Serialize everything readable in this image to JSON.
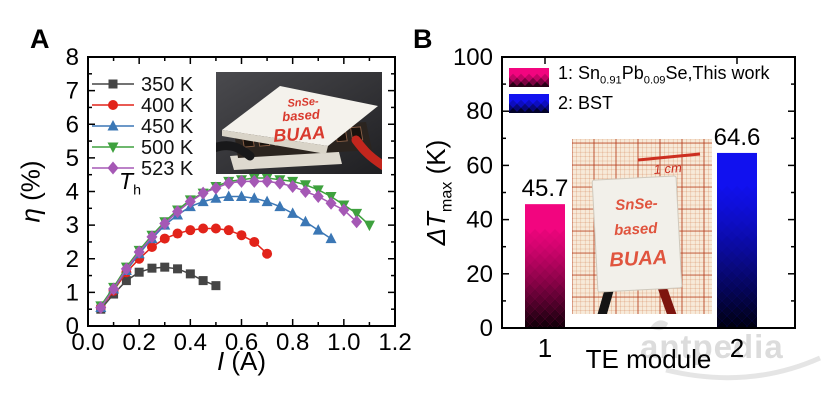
{
  "panels": {
    "A": {
      "label": "A"
    },
    "B": {
      "label": "B"
    }
  },
  "watermark": {
    "text": "antpedia"
  },
  "insetA": {
    "lines": [
      "SnSe-",
      "based",
      "BUAA"
    ],
    "text_color": "#d93a2e",
    "bg_dark": "#1f1f22",
    "bg_light": "#4a4a4e",
    "plate_color": "#f4f2ec",
    "wire_left_color": "#18181a",
    "wire_right_color": "#c3261d"
  },
  "insetB": {
    "lines": [
      "SnSe-",
      "based",
      "BUAA"
    ],
    "scale_label": "1 cm",
    "text_color": "#e0543e",
    "scale_color": "#cc2e20",
    "paper_bg": "#f7ead9",
    "grid_minor_color": "rgba(205,110,60,0.42)",
    "grid_major_color": "rgba(180,55,25,0.72)",
    "plate_color": "#f2f0ea",
    "wire_left_color": "#141414",
    "wire_right_color": "#7e150e"
  },
  "chart_data": [
    {
      "id": "A",
      "type": "line",
      "xlabel": "I (A)",
      "ylabel": "η (%)",
      "xlabel_parts": [
        {
          "i": "I"
        },
        {
          "t": " (A)"
        }
      ],
      "ylabel_parts": [
        {
          "i": "η"
        },
        {
          "t": " (%)"
        }
      ],
      "annotation_parts": [
        {
          "i": "T"
        },
        {
          "s": "h"
        }
      ],
      "xlim": [
        0,
        1.2
      ],
      "ylim": [
        0,
        8
      ],
      "xticks": [
        0,
        0.2,
        0.4,
        0.6,
        0.8,
        1.0,
        1.2
      ],
      "xtick_labels": [
        "0.0",
        "0.2",
        "0.4",
        "0.6",
        "0.8",
        "1.0",
        "1.2"
      ],
      "yticks": [
        0,
        1,
        2,
        3,
        4,
        5,
        6,
        7,
        8
      ],
      "ytick_labels": [
        "0",
        "1",
        "2",
        "3",
        "4",
        "5",
        "6",
        "7",
        "8"
      ],
      "x_minor_step": 0.1,
      "y_minor_step": 0.5,
      "legend_position": "top-left",
      "grid": false,
      "series": [
        {
          "name": "350 K",
          "color": "#454545",
          "marker": "square",
          "x": [
            0.05,
            0.1,
            0.15,
            0.2,
            0.25,
            0.3,
            0.35,
            0.4,
            0.45,
            0.5
          ],
          "y": [
            0.5,
            0.95,
            1.35,
            1.6,
            1.72,
            1.75,
            1.7,
            1.55,
            1.35,
            1.2
          ]
        },
        {
          "name": "400 K",
          "color": "#e2231a",
          "marker": "circle",
          "x": [
            0.05,
            0.1,
            0.15,
            0.2,
            0.25,
            0.3,
            0.35,
            0.4,
            0.45,
            0.5,
            0.55,
            0.6,
            0.65,
            0.7
          ],
          "y": [
            0.55,
            1.05,
            1.6,
            2.0,
            2.35,
            2.6,
            2.75,
            2.85,
            2.9,
            2.9,
            2.85,
            2.7,
            2.5,
            2.15
          ]
        },
        {
          "name": "450 K",
          "color": "#3b77b5",
          "marker": "triangle-up",
          "x": [
            0.05,
            0.1,
            0.15,
            0.2,
            0.25,
            0.3,
            0.35,
            0.4,
            0.45,
            0.5,
            0.55,
            0.6,
            0.65,
            0.7,
            0.75,
            0.8,
            0.85,
            0.9,
            0.95
          ],
          "y": [
            0.55,
            1.1,
            1.65,
            2.15,
            2.6,
            3.0,
            3.3,
            3.55,
            3.7,
            3.8,
            3.85,
            3.85,
            3.8,
            3.7,
            3.55,
            3.35,
            3.1,
            2.85,
            2.6
          ]
        },
        {
          "name": "500 K",
          "color": "#3ea13e",
          "marker": "triangle-down",
          "x": [
            0.05,
            0.1,
            0.15,
            0.2,
            0.25,
            0.3,
            0.35,
            0.4,
            0.45,
            0.5,
            0.55,
            0.6,
            0.65,
            0.7,
            0.75,
            0.8,
            0.85,
            0.9,
            0.95,
            1.0,
            1.05,
            1.1
          ],
          "y": [
            0.6,
            1.15,
            1.75,
            2.25,
            2.7,
            3.1,
            3.45,
            3.75,
            3.95,
            4.15,
            4.3,
            4.35,
            4.4,
            4.4,
            4.35,
            4.3,
            4.2,
            4.05,
            3.85,
            3.6,
            3.35,
            3.0
          ]
        },
        {
          "name": "523 K",
          "color": "#a558b5",
          "marker": "diamond",
          "x": [
            0.05,
            0.1,
            0.15,
            0.2,
            0.25,
            0.3,
            0.35,
            0.4,
            0.45,
            0.5,
            0.55,
            0.6,
            0.65,
            0.7,
            0.75,
            0.8,
            0.85,
            0.9,
            0.95,
            1.0,
            1.05
          ],
          "y": [
            0.55,
            1.1,
            1.7,
            2.2,
            2.65,
            3.05,
            3.4,
            3.7,
            3.95,
            4.1,
            4.25,
            4.3,
            4.3,
            4.3,
            4.25,
            4.15,
            4.0,
            3.85,
            3.65,
            3.45,
            3.1
          ]
        }
      ]
    },
    {
      "id": "B",
      "type": "bar",
      "categories": [
        "1",
        "2"
      ],
      "values": [
        45.7,
        64.6
      ],
      "value_labels": [
        "45.7",
        "64.6"
      ],
      "bar_colors": [
        "#f2057f",
        "#1111ef"
      ],
      "xlabel": "TE module",
      "ylabel": "ΔTmax (K)",
      "ylabel_parts": [
        {
          "i": "ΔT"
        },
        {
          "s": "max"
        },
        {
          "t": " (K)"
        }
      ],
      "ylim": [
        0,
        100
      ],
      "yticks": [
        0,
        20,
        40,
        60,
        80,
        100
      ],
      "ytick_labels": [
        "0",
        "20",
        "40",
        "60",
        "80",
        "100"
      ],
      "y_minor_step": 10,
      "grid": false,
      "legend_position": "top-left",
      "legend": [
        {
          "color": "#f2057f",
          "label_parts": [
            {
              "t": "1: Sn"
            },
            {
              "s": "0.91"
            },
            {
              "t": "Pb"
            },
            {
              "s": "0.09"
            },
            {
              "t": "Se,This work"
            }
          ]
        },
        {
          "color": "#1111ef",
          "label_parts": [
            {
              "t": "2: BST"
            }
          ]
        }
      ]
    }
  ]
}
